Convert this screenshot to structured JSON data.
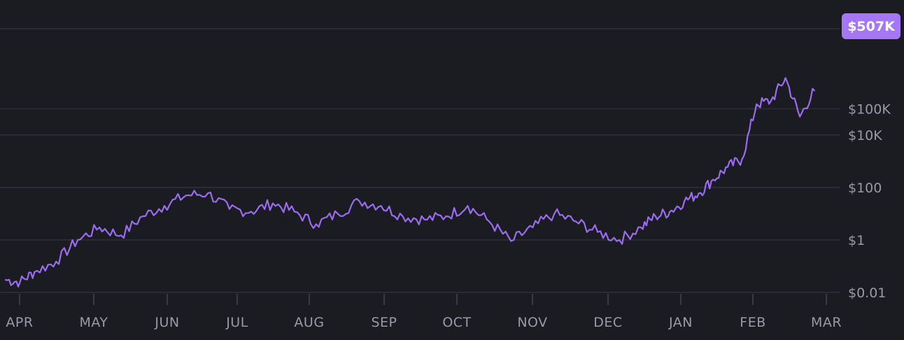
{
  "chart_data": {
    "type": "line",
    "scale": "log",
    "grid": true,
    "ylim": [
      0.01,
      1000000
    ],
    "y_ticks": [
      {
        "value": 0.01,
        "label": "$0.01"
      },
      {
        "value": 1,
        "label": "$1"
      },
      {
        "value": 100,
        "label": "$100"
      },
      {
        "value": 10000,
        "label": "$10K"
      },
      {
        "value": 100000,
        "label": "$100K"
      }
    ],
    "x_ticks": [
      "APR",
      "MAY",
      "JUN",
      "JUL",
      "AUG",
      "SEP",
      "OCT",
      "NOV",
      "DEC",
      "JAN",
      "FEB",
      "MAR"
    ],
    "current_value_label": "$507K",
    "colors": {
      "line": "#9a6cf0",
      "badge": "#a577f5"
    },
    "series": [
      {
        "months": [
          0,
          0.2,
          0.4,
          0.7,
          1.0,
          1.3,
          1.6,
          1.9,
          2.2,
          2.5,
          2.8,
          3.1,
          3.4,
          3.7,
          4.0,
          4.3,
          4.6,
          4.9,
          5.2,
          5.5,
          5.8,
          6.1,
          6.4,
          6.7,
          7.0,
          7.3,
          7.6,
          7.9,
          8.2,
          8.5,
          8.8,
          9.0,
          9.2,
          9.4,
          9.6,
          9.8,
          10.0,
          10.2,
          10.4,
          10.6,
          10.8,
          11.0,
          11.2
        ],
        "values": [
          0.03,
          0.025,
          0.06,
          0.15,
          1,
          3,
          1.5,
          8,
          20,
          50,
          60,
          15,
          12,
          25,
          12,
          4,
          10,
          30,
          20,
          8,
          6,
          8,
          20,
          5,
          0.9,
          3,
          10,
          5,
          2,
          1,
          3,
          8,
          12,
          30,
          60,
          200,
          600,
          1200,
          150000,
          200000,
          1500000,
          50000,
          500000
        ]
      }
    ]
  }
}
